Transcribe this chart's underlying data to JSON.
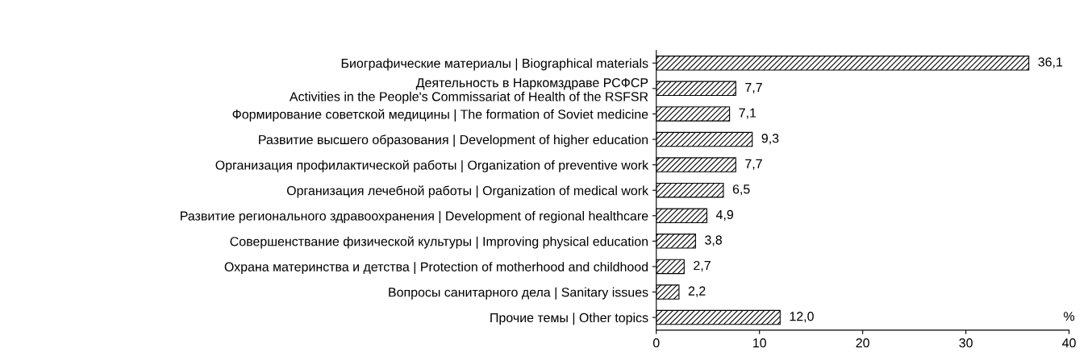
{
  "chart_data": {
    "type": "bar",
    "orientation": "horizontal",
    "xlabel": "%",
    "categories": [
      "Биографические материалы | Biographical materials",
      "Деятельность в Наркомздраве РСФСР\nActivities in the People's Commissariat of Health of the RSFSR",
      "Формирование советской медицины | The formation of Soviet medicine",
      "Развитие высшего образования | Development of higher education",
      "Организация профилактической работы | Organization of preventive work",
      "Организация лечебной работы | Organization of medical work",
      "Развитие регионального здравоохранения | Development of regional healthcare",
      "Совершенствание физической культуры | Improving physical education",
      "Охрана материнства и детства | Protection of motherhood and childhood",
      "Вопросы санитарного дела | Sanitary issues",
      "Прочие темы | Other topics"
    ],
    "values": [
      36.1,
      7.7,
      7.1,
      9.3,
      7.7,
      6.5,
      4.9,
      3.8,
      2.7,
      2.2,
      12.0
    ],
    "value_labels": [
      "36,1",
      "7,7",
      "7,1",
      "9,3",
      "7,7",
      "6,5",
      "4,9",
      "3,8",
      "2,7",
      "2,2",
      "12,0"
    ],
    "color": "#000000",
    "xlim": [
      0,
      40
    ],
    "xticks": [
      0,
      10,
      20,
      30,
      40
    ],
    "grid": false,
    "legend": false
  }
}
